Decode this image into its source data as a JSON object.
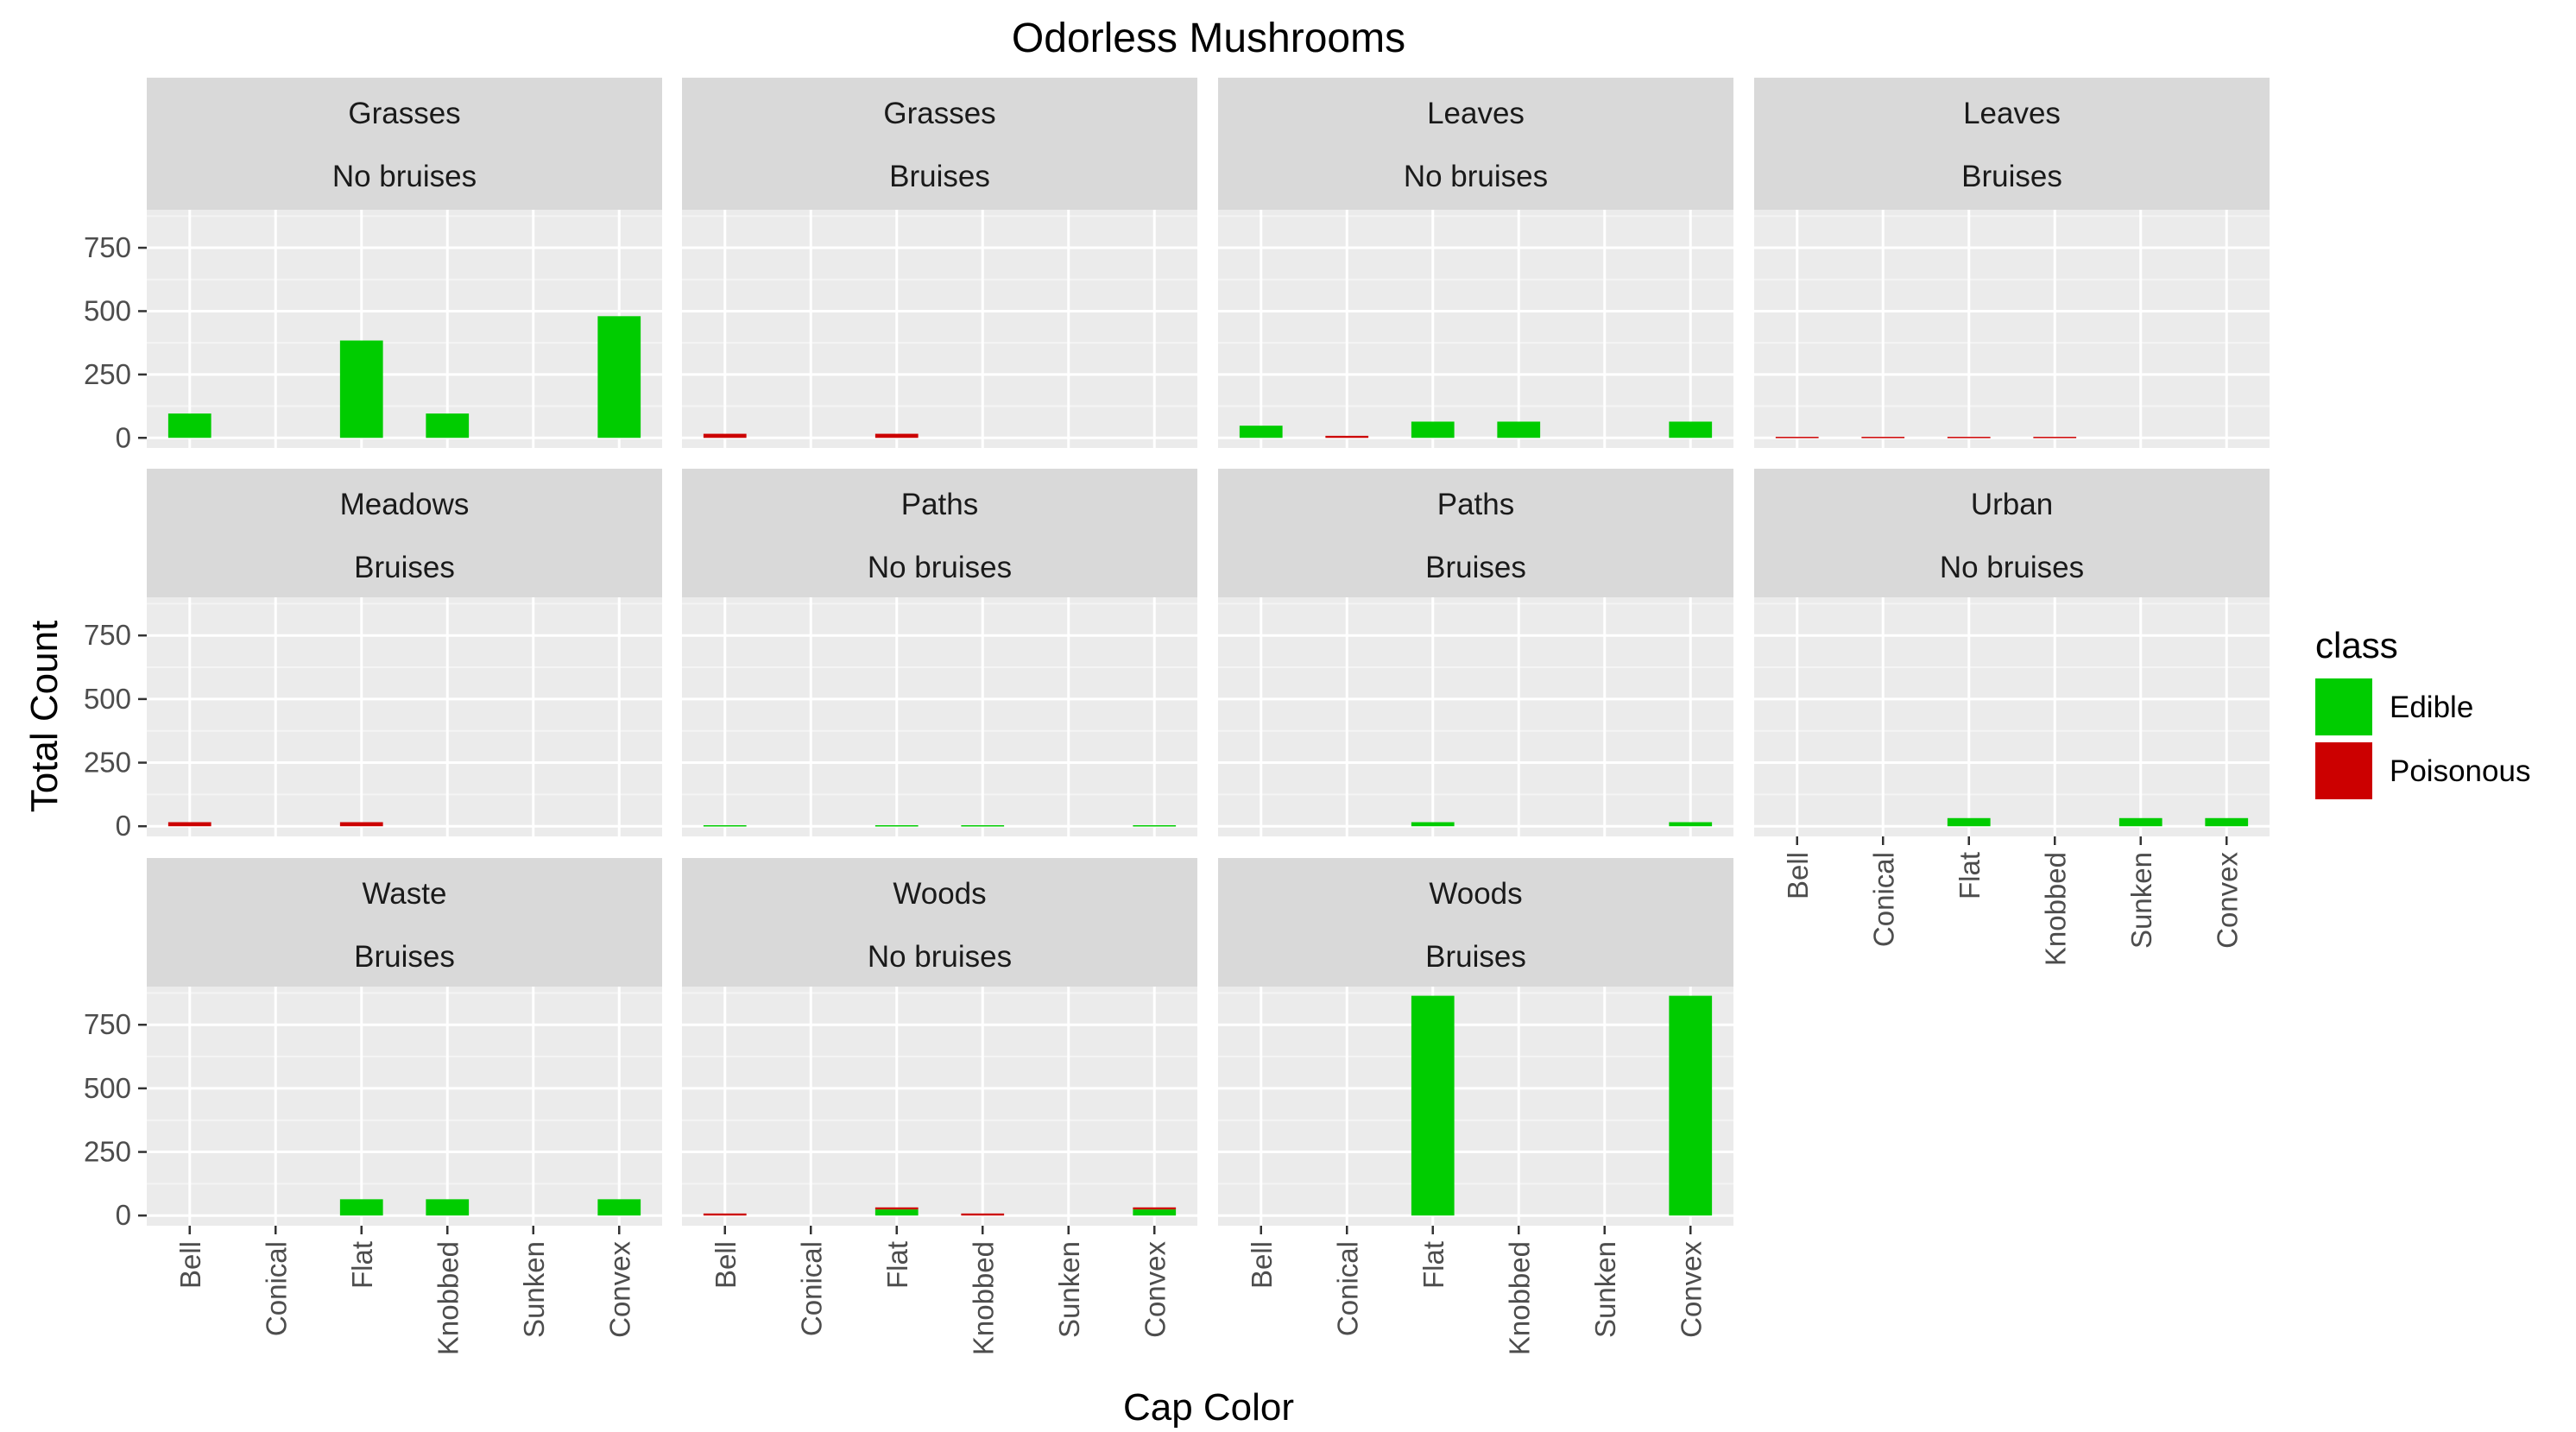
{
  "chart_data": {
    "type": "bar",
    "title": "Odorless Mushrooms",
    "xlabel": "Cap Color",
    "ylabel": "Total Count",
    "categories": [
      "Bell",
      "Conical",
      "Flat",
      "Knobbed",
      "Sunken",
      "Convex"
    ],
    "y_ticks": [
      "0",
      "250",
      "500",
      "750"
    ],
    "ylim": [
      -40,
      900
    ],
    "grid": true,
    "stacked": true,
    "legend": {
      "title": "class",
      "position": "right",
      "entries": [
        {
          "label": "Edible",
          "color": "#00CC00"
        },
        {
          "label": "Poisonous",
          "color": "#CC0000"
        }
      ]
    },
    "facets": [
      {
        "habitat": "Grasses",
        "bruises": "No bruises",
        "edible": [
          96,
          0,
          384,
          96,
          0,
          480
        ],
        "poisonous": [
          0,
          0,
          0,
          0,
          0,
          0
        ]
      },
      {
        "habitat": "Grasses",
        "bruises": "Bruises",
        "edible": [
          0,
          0,
          0,
          0,
          0,
          0
        ],
        "poisonous": [
          16,
          0,
          16,
          0,
          0,
          0
        ]
      },
      {
        "habitat": "Leaves",
        "bruises": "No bruises",
        "edible": [
          48,
          0,
          64,
          64,
          0,
          64
        ],
        "poisonous": [
          0,
          8,
          0,
          0,
          0,
          0
        ]
      },
      {
        "habitat": "Leaves",
        "bruises": "Bruises",
        "edible": [
          0,
          0,
          0,
          0,
          0,
          0
        ],
        "poisonous": [
          4,
          4,
          4,
          4,
          0,
          0
        ]
      },
      {
        "habitat": "Meadows",
        "bruises": "Bruises",
        "edible": [
          0,
          0,
          0,
          0,
          0,
          0
        ],
        "poisonous": [
          16,
          0,
          16,
          0,
          0,
          0
        ]
      },
      {
        "habitat": "Paths",
        "bruises": "No bruises",
        "edible": [
          4,
          0,
          4,
          4,
          0,
          4
        ],
        "poisonous": [
          0,
          0,
          0,
          0,
          0,
          0
        ]
      },
      {
        "habitat": "Paths",
        "bruises": "Bruises",
        "edible": [
          0,
          0,
          16,
          0,
          0,
          16
        ],
        "poisonous": [
          0,
          0,
          0,
          0,
          0,
          0
        ]
      },
      {
        "habitat": "Urban",
        "bruises": "No bruises",
        "edible": [
          0,
          0,
          32,
          0,
          32,
          32
        ],
        "poisonous": [
          0,
          0,
          0,
          0,
          0,
          0
        ]
      },
      {
        "habitat": "Waste",
        "bruises": "Bruises",
        "edible": [
          0,
          0,
          64,
          64,
          0,
          64
        ],
        "poisonous": [
          0,
          0,
          0,
          0,
          0,
          0
        ]
      },
      {
        "habitat": "Woods",
        "bruises": "No bruises",
        "edible": [
          0,
          0,
          24,
          0,
          0,
          24
        ],
        "poisonous": [
          8,
          0,
          8,
          8,
          0,
          8
        ]
      },
      {
        "habitat": "Woods",
        "bruises": "Bruises",
        "edible": [
          0,
          0,
          864,
          0,
          0,
          864
        ],
        "poisonous": [
          0,
          0,
          0,
          0,
          0,
          0
        ]
      }
    ]
  }
}
